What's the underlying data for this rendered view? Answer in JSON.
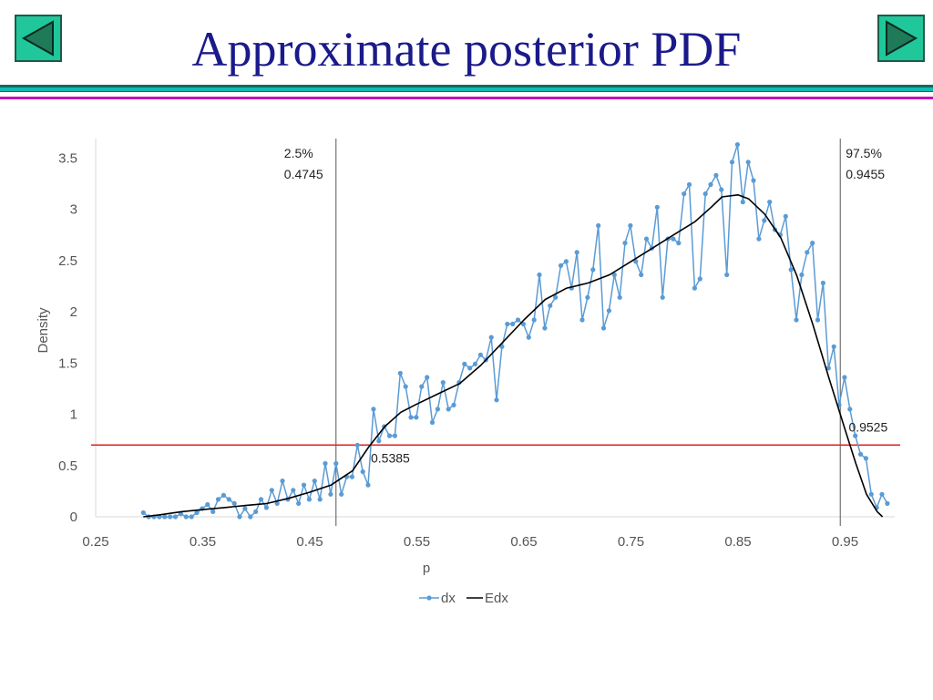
{
  "slide": {
    "title": "Approximate posterior PDF",
    "prev_icon": "triangle-left-icon",
    "next_icon": "triangle-right-icon",
    "colors": {
      "button_fill": "#1fc79a",
      "title": "#1a1a8a",
      "band_teal": "#0e6b63",
      "band_cyan": "#14b9b4",
      "band_magenta": "#c212b8"
    }
  },
  "chart_data": {
    "type": "line",
    "title": "",
    "xlabel": "p",
    "ylabel": "Density",
    "xlim": [
      0.25,
      0.99
    ],
    "ylim": [
      0,
      3.5
    ],
    "x_ticks": [
      0.25,
      0.35,
      0.45,
      0.55,
      0.65,
      0.75,
      0.85,
      0.95
    ],
    "x_tick_labels": [
      "0.25",
      "0.35",
      "0.45",
      "0.55",
      "0.65",
      "0.75",
      "0.85",
      "0.95"
    ],
    "y_ticks": [
      0,
      0.5,
      1,
      1.5,
      2,
      2.5,
      3,
      3.5
    ],
    "y_tick_labels": [
      "0",
      "0.5",
      "1",
      "1.5",
      "2",
      "2.5",
      "3",
      "3.5"
    ],
    "grid": false,
    "legend": {
      "placement": "bottom",
      "entries": [
        "dx",
        "Edx"
      ]
    },
    "series": [
      {
        "name": "dx",
        "color": "#5b9bd5",
        "marker": "circle",
        "points": [
          [
            0.2945,
            0.04
          ],
          [
            0.2995,
            0.0
          ],
          [
            0.3045,
            0.0
          ],
          [
            0.3095,
            0.0
          ],
          [
            0.3145,
            0.0
          ],
          [
            0.3195,
            0.0
          ],
          [
            0.3245,
            0.0
          ],
          [
            0.3295,
            0.03
          ],
          [
            0.3345,
            0.0
          ],
          [
            0.3395,
            0.0
          ],
          [
            0.3445,
            0.04
          ],
          [
            0.3495,
            0.08
          ],
          [
            0.3545,
            0.12
          ],
          [
            0.3595,
            0.05
          ],
          [
            0.3645,
            0.17
          ],
          [
            0.3695,
            0.21
          ],
          [
            0.3745,
            0.17
          ],
          [
            0.3795,
            0.13
          ],
          [
            0.3845,
            0.0
          ],
          [
            0.3895,
            0.08
          ],
          [
            0.3945,
            0.0
          ],
          [
            0.3995,
            0.05
          ],
          [
            0.4045,
            0.17
          ],
          [
            0.4095,
            0.09
          ],
          [
            0.4145,
            0.26
          ],
          [
            0.4195,
            0.13
          ],
          [
            0.4245,
            0.35
          ],
          [
            0.4295,
            0.17
          ],
          [
            0.4345,
            0.26
          ],
          [
            0.4395,
            0.13
          ],
          [
            0.4445,
            0.31
          ],
          [
            0.4495,
            0.17
          ],
          [
            0.4545,
            0.35
          ],
          [
            0.4595,
            0.17
          ],
          [
            0.4645,
            0.52
          ],
          [
            0.4695,
            0.22
          ],
          [
            0.4745,
            0.52
          ],
          [
            0.4795,
            0.22
          ],
          [
            0.4845,
            0.39
          ],
          [
            0.4895,
            0.39
          ],
          [
            0.4945,
            0.7
          ],
          [
            0.4995,
            0.44
          ],
          [
            0.5045,
            0.31
          ],
          [
            0.5095,
            1.05
          ],
          [
            0.5145,
            0.74
          ],
          [
            0.5195,
            0.88
          ],
          [
            0.5245,
            0.79
          ],
          [
            0.5295,
            0.79
          ],
          [
            0.5345,
            1.4
          ],
          [
            0.5395,
            1.27
          ],
          [
            0.5445,
            0.97
          ],
          [
            0.5495,
            0.97
          ],
          [
            0.5545,
            1.27
          ],
          [
            0.5595,
            1.36
          ],
          [
            0.5645,
            0.92
          ],
          [
            0.5695,
            1.05
          ],
          [
            0.5745,
            1.31
          ],
          [
            0.5795,
            1.05
          ],
          [
            0.5845,
            1.09
          ],
          [
            0.5895,
            1.31
          ],
          [
            0.5945,
            1.49
          ],
          [
            0.5995,
            1.45
          ],
          [
            0.6045,
            1.49
          ],
          [
            0.6095,
            1.58
          ],
          [
            0.6145,
            1.53
          ],
          [
            0.6195,
            1.75
          ],
          [
            0.6245,
            1.14
          ],
          [
            0.6295,
            1.66
          ],
          [
            0.6345,
            1.88
          ],
          [
            0.6395,
            1.88
          ],
          [
            0.6445,
            1.92
          ],
          [
            0.6495,
            1.88
          ],
          [
            0.6545,
            1.75
          ],
          [
            0.6595,
            1.92
          ],
          [
            0.6645,
            2.36
          ],
          [
            0.6695,
            1.84
          ],
          [
            0.6745,
            2.06
          ],
          [
            0.6795,
            2.14
          ],
          [
            0.6845,
            2.45
          ],
          [
            0.6895,
            2.49
          ],
          [
            0.6945,
            2.23
          ],
          [
            0.6995,
            2.58
          ],
          [
            0.7045,
            1.92
          ],
          [
            0.7095,
            2.14
          ],
          [
            0.7145,
            2.41
          ],
          [
            0.7195,
            2.84
          ],
          [
            0.7245,
            1.84
          ],
          [
            0.7295,
            2.01
          ],
          [
            0.7345,
            2.36
          ],
          [
            0.7395,
            2.14
          ],
          [
            0.7445,
            2.67
          ],
          [
            0.7495,
            2.84
          ],
          [
            0.7545,
            2.49
          ],
          [
            0.7595,
            2.36
          ],
          [
            0.7645,
            2.71
          ],
          [
            0.7695,
            2.62
          ],
          [
            0.7745,
            3.02
          ],
          [
            0.7795,
            2.14
          ],
          [
            0.7845,
            2.71
          ],
          [
            0.7895,
            2.71
          ],
          [
            0.7945,
            2.67
          ],
          [
            0.7995,
            3.15
          ],
          [
            0.8045,
            3.24
          ],
          [
            0.8095,
            2.23
          ],
          [
            0.8145,
            2.32
          ],
          [
            0.8195,
            3.15
          ],
          [
            0.8245,
            3.24
          ],
          [
            0.8295,
            3.33
          ],
          [
            0.8345,
            3.19
          ],
          [
            0.8395,
            2.36
          ],
          [
            0.8445,
            3.46
          ],
          [
            0.8495,
            3.63
          ],
          [
            0.8545,
            3.07
          ],
          [
            0.8595,
            3.46
          ],
          [
            0.8645,
            3.28
          ],
          [
            0.8695,
            2.71
          ],
          [
            0.8745,
            2.89
          ],
          [
            0.8795,
            3.07
          ],
          [
            0.8845,
            2.8
          ],
          [
            0.8895,
            2.75
          ],
          [
            0.8945,
            2.93
          ],
          [
            0.8995,
            2.41
          ],
          [
            0.9045,
            1.92
          ],
          [
            0.9095,
            2.36
          ],
          [
            0.9145,
            2.58
          ],
          [
            0.9195,
            2.67
          ],
          [
            0.9245,
            1.92
          ],
          [
            0.9295,
            2.28
          ],
          [
            0.9345,
            1.45
          ],
          [
            0.9395,
            1.66
          ],
          [
            0.9445,
            1.09
          ],
          [
            0.9495,
            1.36
          ],
          [
            0.9545,
            1.05
          ],
          [
            0.9595,
            0.79
          ],
          [
            0.9645,
            0.61
          ],
          [
            0.9695,
            0.57
          ],
          [
            0.9745,
            0.22
          ],
          [
            0.9795,
            0.09
          ],
          [
            0.9845,
            0.22
          ],
          [
            0.9895,
            0.13
          ]
        ]
      },
      {
        "name": "Edx",
        "color": "#000000",
        "marker": "none",
        "points": [
          [
            0.2945,
            0.0
          ],
          [
            0.31,
            0.02
          ],
          [
            0.33,
            0.05
          ],
          [
            0.35,
            0.07
          ],
          [
            0.37,
            0.09
          ],
          [
            0.39,
            0.11
          ],
          [
            0.41,
            0.13
          ],
          [
            0.43,
            0.18
          ],
          [
            0.45,
            0.24
          ],
          [
            0.47,
            0.31
          ],
          [
            0.49,
            0.45
          ],
          [
            0.505,
            0.68
          ],
          [
            0.52,
            0.88
          ],
          [
            0.535,
            1.02
          ],
          [
            0.55,
            1.1
          ],
          [
            0.57,
            1.2
          ],
          [
            0.59,
            1.3
          ],
          [
            0.61,
            1.48
          ],
          [
            0.63,
            1.7
          ],
          [
            0.65,
            1.92
          ],
          [
            0.67,
            2.12
          ],
          [
            0.69,
            2.23
          ],
          [
            0.71,
            2.28
          ],
          [
            0.73,
            2.36
          ],
          [
            0.75,
            2.49
          ],
          [
            0.77,
            2.62
          ],
          [
            0.79,
            2.75
          ],
          [
            0.81,
            2.88
          ],
          [
            0.825,
            3.02
          ],
          [
            0.835,
            3.12
          ],
          [
            0.85,
            3.14
          ],
          [
            0.86,
            3.1
          ],
          [
            0.875,
            2.95
          ],
          [
            0.89,
            2.72
          ],
          [
            0.905,
            2.35
          ],
          [
            0.92,
            1.87
          ],
          [
            0.935,
            1.35
          ],
          [
            0.95,
            0.85
          ],
          [
            0.96,
            0.52
          ],
          [
            0.97,
            0.22
          ],
          [
            0.98,
            0.05
          ],
          [
            0.985,
            0.0
          ]
        ]
      }
    ],
    "reference_lines": [
      {
        "type": "vertical",
        "x": 0.4745,
        "color": "#555555",
        "label_lines": [
          "2.5%",
          "0.4745"
        ]
      },
      {
        "type": "vertical",
        "x": 0.9455,
        "color": "#555555",
        "label_lines": [
          "97.5%",
          "0.9455"
        ]
      },
      {
        "type": "horizontal",
        "y": 0.7,
        "color": "#e02020"
      }
    ],
    "annotations": [
      {
        "text": "0.5385",
        "x": 0.5385,
        "y": 0.7
      },
      {
        "text": "0.9525",
        "x": 0.9525,
        "y": 0.7
      }
    ]
  }
}
